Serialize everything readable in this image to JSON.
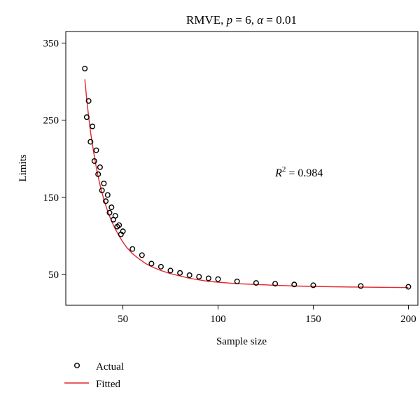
{
  "chart_data": {
    "type": "scatter",
    "title": {
      "prefix": "RMVE, ",
      "p_symbol": "p",
      "p_value": " = 6, ",
      "alpha_symbol": "α",
      "alpha_value": " = 0.01"
    },
    "xlabel": "Sample size",
    "ylabel": "Limits",
    "xlim": [
      20,
      205
    ],
    "ylim": [
      10,
      365
    ],
    "xticks": [
      50,
      100,
      150,
      200
    ],
    "yticks": [
      50,
      150,
      250,
      350
    ],
    "grid": false,
    "annotation": {
      "symbol": "R",
      "superscript": "2",
      "text": " = 0.984",
      "x": 130,
      "y": 177
    },
    "series": [
      {
        "name": "Actual",
        "marker": "open-circle",
        "color": "#000000",
        "x": [
          30,
          31,
          32,
          33,
          34,
          35,
          36,
          37,
          38,
          39,
          40,
          41,
          42,
          43,
          44,
          45,
          46,
          47,
          48,
          49,
          50,
          55,
          60,
          65,
          70,
          75,
          80,
          85,
          90,
          95,
          100,
          110,
          120,
          130,
          140,
          150,
          175,
          200
        ],
        "y": [
          317,
          254,
          275,
          222,
          242,
          197,
          211,
          180,
          189,
          159,
          168,
          145,
          153,
          130,
          137,
          121,
          126,
          112,
          114,
          102,
          106,
          83,
          75,
          64,
          60,
          55,
          52,
          49,
          47,
          45,
          44,
          41,
          39,
          38,
          37,
          36,
          35,
          34
        ]
      },
      {
        "name": "Fitted",
        "marker": "line",
        "color": "#e3262a",
        "x": [
          30,
          31,
          32,
          33,
          34,
          35,
          36,
          37,
          38,
          39,
          40,
          42,
          44,
          46,
          48,
          50,
          52,
          55,
          58,
          62,
          66,
          70,
          75,
          80,
          85,
          90,
          95,
          100,
          110,
          120,
          130,
          140,
          150,
          160,
          170,
          180,
          190,
          200
        ],
        "y": [
          303,
          277,
          255,
          235,
          218,
          203,
          189,
          177,
          166,
          156,
          147,
          132,
          119,
          109,
          100,
          92,
          85,
          77,
          71,
          64,
          59,
          55,
          51,
          48,
          45,
          43,
          41,
          40,
          38,
          37,
          36,
          35,
          34.5,
          34,
          33.7,
          33.4,
          33.2,
          33
        ]
      }
    ],
    "legend": {
      "position": "bottom-left"
    }
  }
}
